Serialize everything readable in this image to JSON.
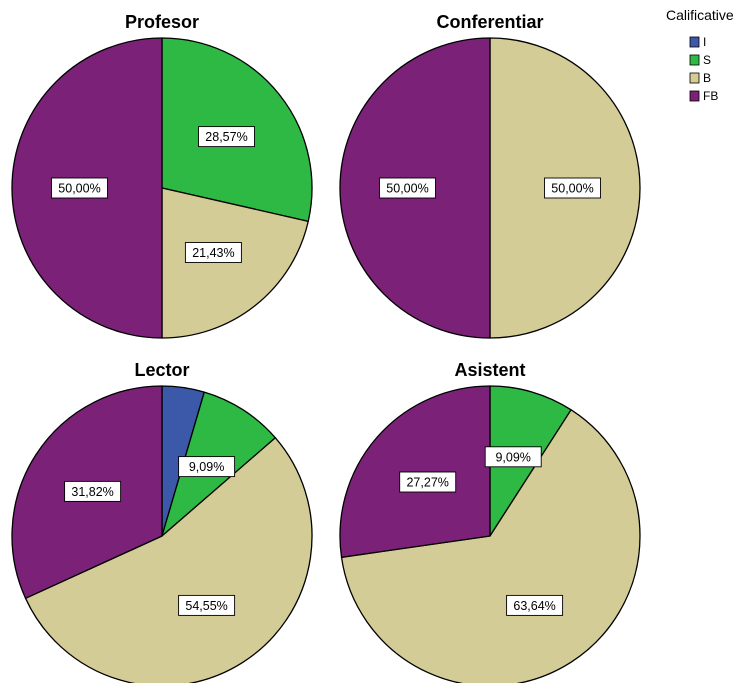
{
  "chart_data": {
    "type": "pie",
    "legend": {
      "title": "Calificative",
      "placement": "top-right",
      "entries": [
        {
          "name": "I",
          "color": "#3c58a8"
        },
        {
          "name": "S",
          "color": "#2eb844"
        },
        {
          "name": "B",
          "color": "#d4cc96"
        },
        {
          "name": "FB",
          "color": "#7b2278"
        }
      ]
    },
    "charts": [
      {
        "title": "Profesor",
        "slices": [
          {
            "category": "S",
            "value": 28.57,
            "label": "28,57%"
          },
          {
            "category": "B",
            "value": 21.43,
            "label": "21,43%"
          },
          {
            "category": "FB",
            "value": 50.0,
            "label": "50,00%"
          }
        ]
      },
      {
        "title": "Conferentiar",
        "slices": [
          {
            "category": "B",
            "value": 50.0,
            "label": "50,00%"
          },
          {
            "category": "FB",
            "value": 50.0,
            "label": "50,00%"
          }
        ]
      },
      {
        "title": "Lector",
        "slices": [
          {
            "category": "I",
            "value": 4.55,
            "label": ""
          },
          {
            "category": "S",
            "value": 9.09,
            "label": "9,09%"
          },
          {
            "category": "B",
            "value": 54.55,
            "label": "54,55%"
          },
          {
            "category": "FB",
            "value": 31.82,
            "label": "31,82%"
          }
        ]
      },
      {
        "title": "Asistent",
        "slices": [
          {
            "category": "S",
            "value": 9.09,
            "label": "9,09%"
          },
          {
            "category": "B",
            "value": 63.64,
            "label": "63,64%"
          },
          {
            "category": "FB",
            "value": 27.27,
            "label": "27,27%"
          }
        ]
      }
    ]
  }
}
